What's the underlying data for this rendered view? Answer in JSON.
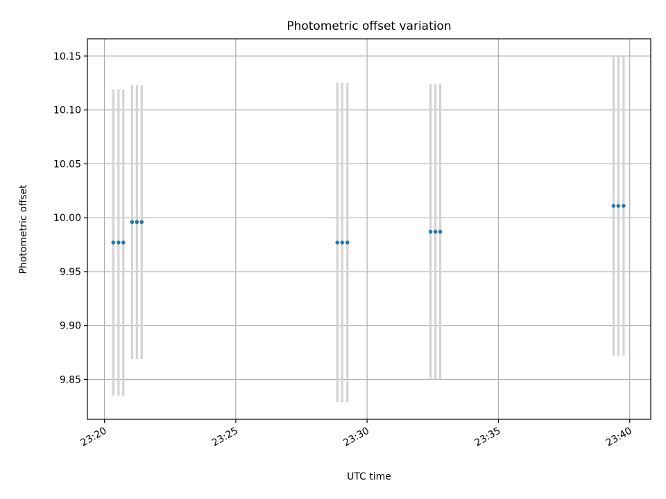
{
  "chart_data": {
    "type": "scatter",
    "title": "Photometric offset variation",
    "xlabel": "UTC time",
    "ylabel": "Photometric offset",
    "x_unit": "UTC time (HH:MM)",
    "xlim": [
      "23:19:21",
      "23:40:48"
    ],
    "ylim": [
      9.813,
      10.166
    ],
    "x_ticks": [
      "23:20",
      "23:25",
      "23:30",
      "23:35",
      "23:40"
    ],
    "x_tick_labels": [
      "23:20",
      "23:25",
      "23:30",
      "23:35",
      "23:40"
    ],
    "y_ticks": [
      9.85,
      9.9,
      9.95,
      10.0,
      10.05,
      10.1,
      10.15
    ],
    "y_tick_labels": [
      "9.85",
      "9.90",
      "9.95",
      "10.00",
      "10.05",
      "10.10",
      "10.15"
    ],
    "x_tick_rotation_deg": 30,
    "grid": true,
    "legend": false,
    "colors": {
      "point": "#1f77b4",
      "error_bar": "#d3d3d3",
      "grid": "#b0b0b0"
    },
    "points": [
      {
        "x": "23:20:20",
        "y": 9.977,
        "err": 0.142
      },
      {
        "x": "23:20:32",
        "y": 9.977,
        "err": 0.142
      },
      {
        "x": "23:20:43",
        "y": 9.977,
        "err": 0.142
      },
      {
        "x": "23:21:03",
        "y": 9.996,
        "err": 0.127
      },
      {
        "x": "23:21:14",
        "y": 9.996,
        "err": 0.127
      },
      {
        "x": "23:21:25",
        "y": 9.996,
        "err": 0.127
      },
      {
        "x": "23:28:52",
        "y": 9.977,
        "err": 0.148
      },
      {
        "x": "23:29:03",
        "y": 9.977,
        "err": 0.148
      },
      {
        "x": "23:29:15",
        "y": 9.977,
        "err": 0.148
      },
      {
        "x": "23:32:25",
        "y": 9.987,
        "err": 0.137
      },
      {
        "x": "23:32:36",
        "y": 9.987,
        "err": 0.137
      },
      {
        "x": "23:32:47",
        "y": 9.987,
        "err": 0.137
      },
      {
        "x": "23:39:23",
        "y": 10.011,
        "err": 0.139
      },
      {
        "x": "23:39:34",
        "y": 10.011,
        "err": 0.139
      },
      {
        "x": "23:39:46",
        "y": 10.011,
        "err": 0.139
      }
    ]
  }
}
